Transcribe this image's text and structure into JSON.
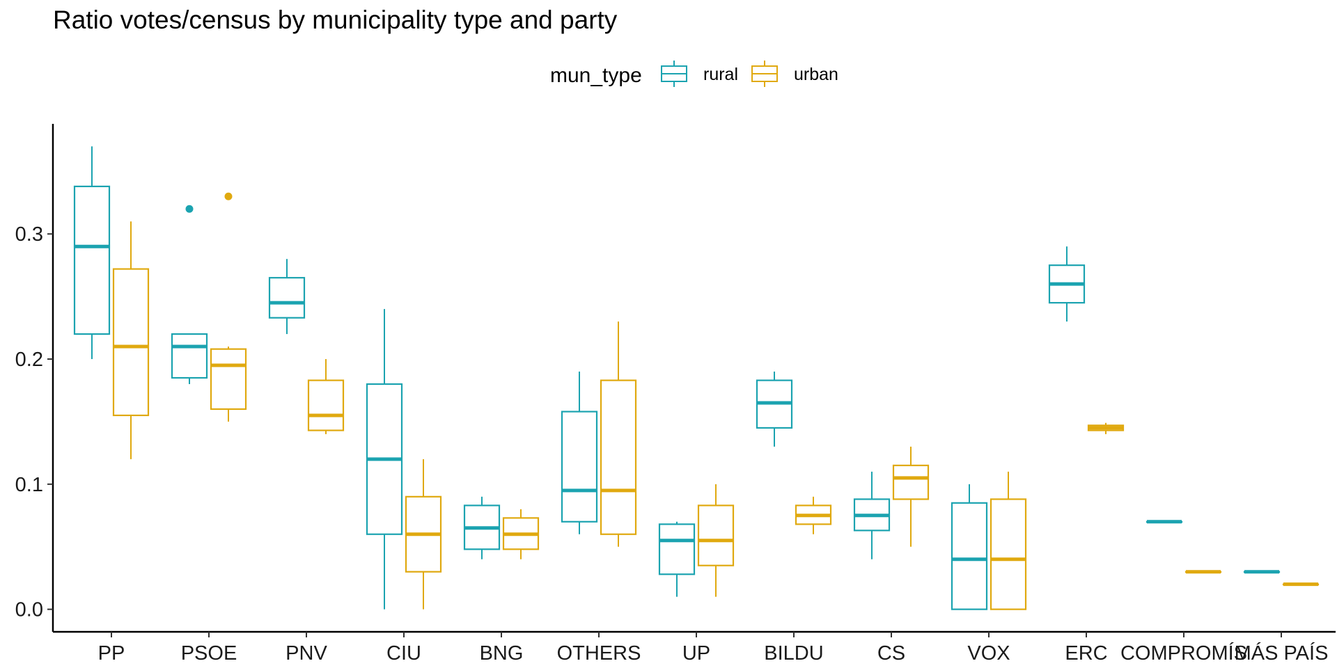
{
  "chart_data": {
    "type": "boxplot",
    "title": "Ratio votes/census by municipality type and party",
    "xlabel": "",
    "ylabel": "",
    "ylim": [
      -0.018,
      0.388
    ],
    "yticks": [
      "0.0",
      "0.1",
      "0.2",
      "0.3"
    ],
    "ytick_values": [
      0.0,
      0.1,
      0.2,
      0.3
    ],
    "categories": [
      "PP",
      "PSOE",
      "PNV",
      "CIU",
      "BNG",
      "OTHERS",
      "UP",
      "BILDU",
      "CS",
      "VOX",
      "ERC",
      "COMPROMÍS",
      "MÁS PAÍS"
    ],
    "legend": {
      "title": "mun_type",
      "position": "top"
    },
    "grid": false,
    "series": [
      {
        "name": "rural",
        "color": "#1BA3B0",
        "boxes": [
          {
            "category": "PP",
            "min": 0.2,
            "q1": 0.22,
            "median": 0.29,
            "q3": 0.338,
            "max": 0.37,
            "outliers": []
          },
          {
            "category": "PSOE",
            "min": 0.18,
            "q1": 0.185,
            "median": 0.21,
            "q3": 0.22,
            "max": 0.22,
            "outliers": [
              0.32
            ]
          },
          {
            "category": "PNV",
            "min": 0.22,
            "q1": 0.233,
            "median": 0.245,
            "q3": 0.265,
            "max": 0.28,
            "outliers": []
          },
          {
            "category": "CIU",
            "min": 0.0,
            "q1": 0.06,
            "median": 0.12,
            "q3": 0.18,
            "max": 0.24,
            "outliers": []
          },
          {
            "category": "BNG",
            "min": 0.04,
            "q1": 0.048,
            "median": 0.065,
            "q3": 0.083,
            "max": 0.09,
            "outliers": []
          },
          {
            "category": "OTHERS",
            "min": 0.06,
            "q1": 0.07,
            "median": 0.095,
            "q3": 0.158,
            "max": 0.19,
            "outliers": []
          },
          {
            "category": "UP",
            "min": 0.01,
            "q1": 0.028,
            "median": 0.055,
            "q3": 0.068,
            "max": 0.07,
            "outliers": []
          },
          {
            "category": "BILDU",
            "min": 0.13,
            "q1": 0.145,
            "median": 0.165,
            "q3": 0.183,
            "max": 0.19,
            "outliers": []
          },
          {
            "category": "CS",
            "min": 0.04,
            "q1": 0.063,
            "median": 0.075,
            "q3": 0.088,
            "max": 0.11,
            "outliers": []
          },
          {
            "category": "VOX",
            "min": 0.0,
            "q1": 0.0,
            "median": 0.04,
            "q3": 0.085,
            "max": 0.1,
            "outliers": []
          },
          {
            "category": "ERC",
            "min": 0.23,
            "q1": 0.245,
            "median": 0.26,
            "q3": 0.275,
            "max": 0.29,
            "outliers": []
          },
          {
            "category": "COMPROMÍS",
            "min": 0.07,
            "q1": 0.07,
            "median": 0.07,
            "q3": 0.07,
            "max": 0.07,
            "outliers": []
          },
          {
            "category": "MÁS PAÍS",
            "min": 0.03,
            "q1": 0.03,
            "median": 0.03,
            "q3": 0.03,
            "max": 0.03,
            "outliers": []
          }
        ]
      },
      {
        "name": "urban",
        "color": "#E0A90F",
        "boxes": [
          {
            "category": "PP",
            "min": 0.12,
            "q1": 0.155,
            "median": 0.21,
            "q3": 0.272,
            "max": 0.31,
            "outliers": []
          },
          {
            "category": "PSOE",
            "min": 0.15,
            "q1": 0.16,
            "median": 0.195,
            "q3": 0.208,
            "max": 0.21,
            "outliers": [
              0.33
            ]
          },
          {
            "category": "PNV",
            "min": 0.14,
            "q1": 0.143,
            "median": 0.155,
            "q3": 0.183,
            "max": 0.2,
            "outliers": []
          },
          {
            "category": "CIU",
            "min": 0.0,
            "q1": 0.03,
            "median": 0.06,
            "q3": 0.09,
            "max": 0.12,
            "outliers": []
          },
          {
            "category": "BNG",
            "min": 0.04,
            "q1": 0.048,
            "median": 0.06,
            "q3": 0.073,
            "max": 0.08,
            "outliers": []
          },
          {
            "category": "OTHERS",
            "min": 0.05,
            "q1": 0.06,
            "median": 0.095,
            "q3": 0.183,
            "max": 0.23,
            "outliers": []
          },
          {
            "category": "UP",
            "min": 0.01,
            "q1": 0.035,
            "median": 0.055,
            "q3": 0.083,
            "max": 0.1,
            "outliers": []
          },
          {
            "category": "BILDU",
            "min": 0.06,
            "q1": 0.068,
            "median": 0.075,
            "q3": 0.083,
            "max": 0.09,
            "outliers": []
          },
          {
            "category": "CS",
            "min": 0.05,
            "q1": 0.088,
            "median": 0.105,
            "q3": 0.115,
            "max": 0.13,
            "outliers": []
          },
          {
            "category": "VOX",
            "min": 0.0,
            "q1": 0.0,
            "median": 0.04,
            "q3": 0.088,
            "max": 0.11,
            "outliers": []
          },
          {
            "category": "ERC",
            "min": 0.14,
            "q1": 0.143,
            "median": 0.145,
            "q3": 0.147,
            "max": 0.149,
            "outliers": []
          },
          {
            "category": "COMPROMÍS",
            "min": 0.03,
            "q1": 0.03,
            "median": 0.03,
            "q3": 0.03,
            "max": 0.03,
            "outliers": []
          },
          {
            "category": "MÁS PAÍS",
            "min": 0.02,
            "q1": 0.02,
            "median": 0.02,
            "q3": 0.02,
            "max": 0.02,
            "outliers": []
          }
        ]
      }
    ]
  }
}
